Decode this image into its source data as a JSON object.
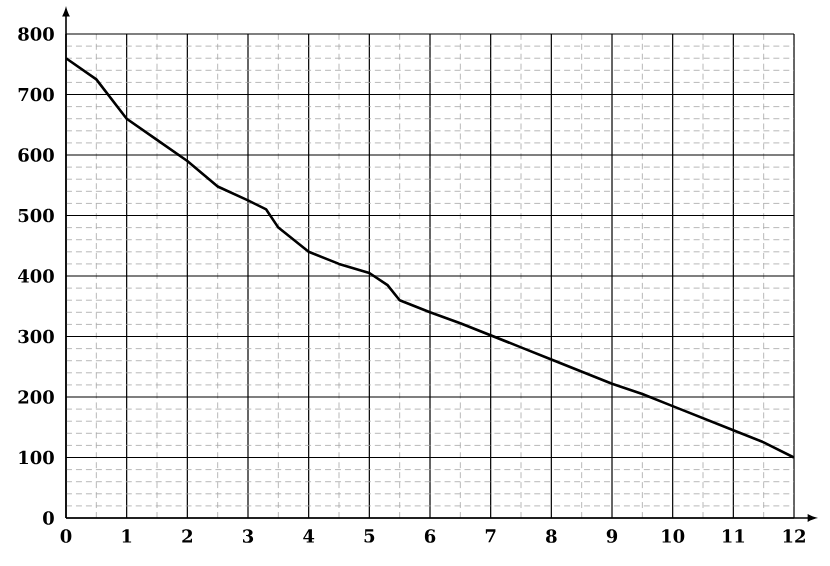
{
  "chart_data": {
    "type": "line",
    "x": [
      0,
      0.5,
      1,
      1.5,
      2,
      2.5,
      3,
      3.3,
      3.5,
      4,
      4.5,
      5,
      5.3,
      5.5,
      6,
      6.5,
      7,
      7.5,
      8,
      8.5,
      9,
      9.5,
      10,
      10.5,
      11,
      11.5,
      12
    ],
    "values": [
      760,
      725,
      660,
      625,
      590,
      548,
      525,
      510,
      480,
      440,
      420,
      405,
      385,
      360,
      340,
      322,
      302,
      282,
      262,
      242,
      222,
      205,
      185,
      165,
      145,
      125,
      100
    ],
    "color": "#000000",
    "xlim": [
      0,
      12
    ],
    "ylim": [
      0,
      800
    ],
    "xticks": [
      0,
      1,
      2,
      3,
      4,
      5,
      6,
      7,
      8,
      9,
      10,
      11,
      12
    ],
    "yticks": [
      0,
      100,
      200,
      300,
      400,
      500,
      600,
      700,
      800
    ],
    "grid": true,
    "marker": "none",
    "line_style": "solid"
  }
}
